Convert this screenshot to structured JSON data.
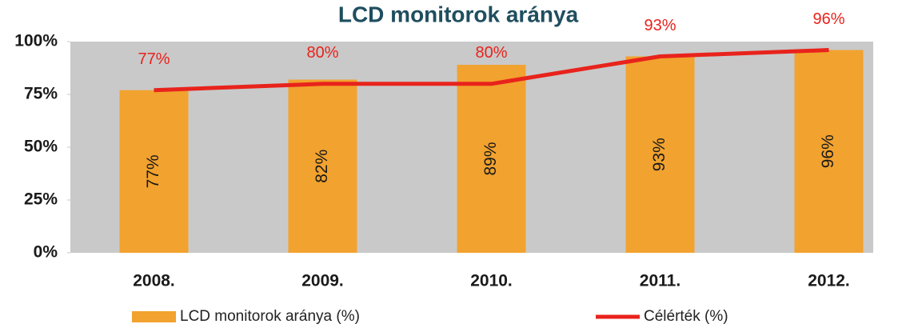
{
  "chart_data": {
    "type": "combo",
    "title": "LCD monitorok aránya",
    "categories": [
      "2008.",
      "2009.",
      "2010.",
      "2011.",
      "2012."
    ],
    "series": [
      {
        "name": "LCD monitorok aránya (%)",
        "type": "bar",
        "color": "#f2a22e",
        "values": [
          77,
          82,
          89,
          93,
          96
        ],
        "value_labels": [
          "77%",
          "82%",
          "89%",
          "93%",
          "96%"
        ]
      },
      {
        "name": "Célérték (%)",
        "type": "line",
        "color": "#e8231c",
        "values": [
          77,
          80,
          80,
          93,
          96
        ],
        "value_labels": [
          "77%",
          "80%",
          "80%",
          "93%",
          "96%"
        ]
      }
    ],
    "ylim": [
      0,
      100
    ],
    "yticks": [
      {
        "value": 0,
        "label": "0%"
      },
      {
        "value": 25,
        "label": "25%"
      },
      {
        "value": 50,
        "label": "50%"
      },
      {
        "value": 75,
        "label": "75%"
      },
      {
        "value": 100,
        "label": "100%"
      }
    ],
    "legend": "bottom"
  }
}
